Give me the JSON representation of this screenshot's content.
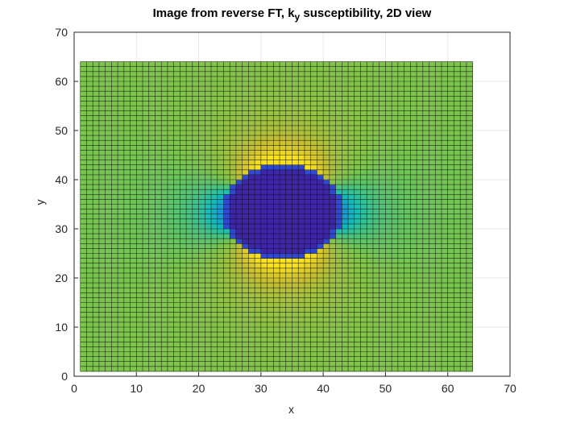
{
  "title_prefix": "Image from reverse FT, k",
  "title_sub": "y",
  "title_suffix": " susceptibility, 2D view",
  "chart_data": {
    "type": "heatmap",
    "view": "2D surface with black mesh grid",
    "xlabel": "x",
    "ylabel": "y",
    "xlim": [
      0,
      70
    ],
    "ylim": [
      0,
      70
    ],
    "xticks": [
      0,
      10,
      20,
      30,
      40,
      50,
      60,
      70
    ],
    "yticks": [
      0,
      10,
      20,
      30,
      40,
      50,
      60,
      70
    ],
    "grid": true,
    "grid_range": {
      "x": [
        1,
        64
      ],
      "y": [
        1,
        64
      ]
    },
    "colormap": "parula",
    "background_color": "#7cc44e",
    "features": [
      {
        "name": "core",
        "shape": "ellipse",
        "center": [
          33.5,
          33.5
        ],
        "semi_axes": [
          9.5,
          9.5
        ],
        "color": "#2e3bd6"
      },
      {
        "name": "core-inner",
        "shape": "ellipse",
        "center": [
          33.5,
          33.5
        ],
        "semi_axes": [
          8.8,
          8.8
        ],
        "color": "#3e26a8"
      },
      {
        "name": "lobe-top-left",
        "center": [
          26,
          43.5
        ],
        "color": "#e8b63a"
      },
      {
        "name": "lobe-top-right",
        "center": [
          42,
          43.5
        ],
        "color": "#f0c030"
      },
      {
        "name": "lobe-bottom",
        "center": [
          33.5,
          23.5
        ],
        "color": "#f4c426"
      },
      {
        "name": "halo-left",
        "center": [
          23,
          34
        ],
        "color": "#22c4a4"
      },
      {
        "name": "halo-right",
        "center": [
          45,
          34
        ],
        "color": "#22c4a4"
      },
      {
        "name": "halo-top",
        "center": [
          33.5,
          48
        ],
        "color": "#3cbf8a"
      },
      {
        "name": "halo-bottom",
        "center": [
          33.5,
          19
        ],
        "color": "#3cbf8a"
      }
    ]
  }
}
